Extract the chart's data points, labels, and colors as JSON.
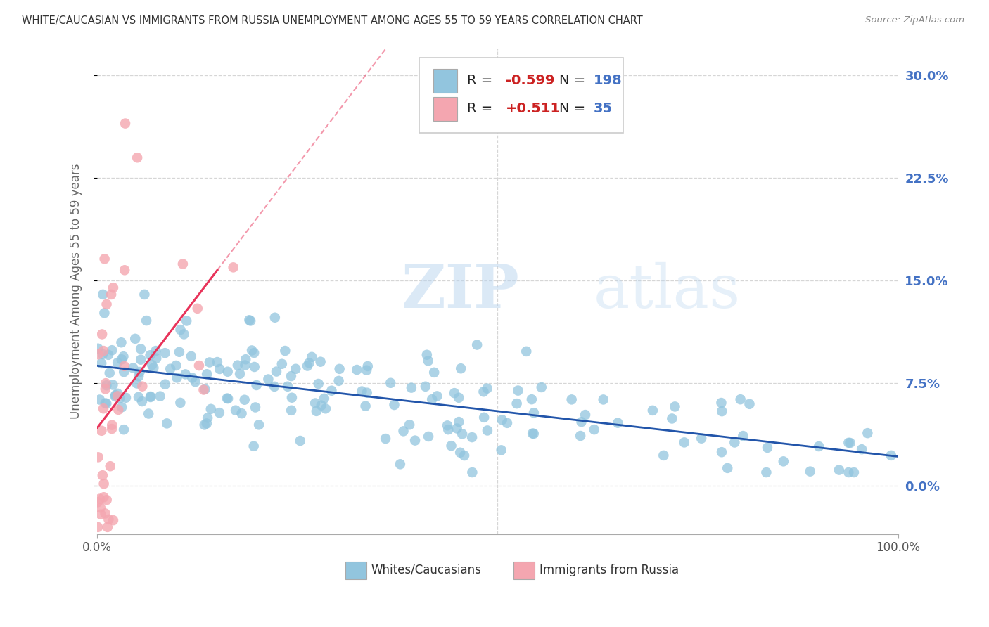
{
  "title": "WHITE/CAUCASIAN VS IMMIGRANTS FROM RUSSIA UNEMPLOYMENT AMONG AGES 55 TO 59 YEARS CORRELATION CHART",
  "source": "Source: ZipAtlas.com",
  "ylabel": "Unemployment Among Ages 55 to 59 years",
  "xlim": [
    0,
    100
  ],
  "ylim": [
    -3.5,
    32
  ],
  "yticks": [
    0,
    7.5,
    15,
    22.5,
    30
  ],
  "ytick_labels": [
    "0.0%",
    "7.5%",
    "15.0%",
    "22.5%",
    "30.0%"
  ],
  "xtick_labels": [
    "0.0%",
    "100.0%"
  ],
  "xtick_positions": [
    0,
    100
  ],
  "blue_R": -0.599,
  "blue_N": 198,
  "pink_R": 0.511,
  "pink_N": 35,
  "blue_color": "#92c5de",
  "pink_color": "#f4a6b0",
  "blue_line_color": "#2255aa",
  "pink_line_color": "#e8335a",
  "watermark_zip": "ZIP",
  "watermark_atlas": "atlas",
  "legend_label_blue": "Whites/Caucasians",
  "legend_label_pink": "Immigrants from Russia",
  "background_color": "#ffffff",
  "grid_color": "#cccccc",
  "title_color": "#333333",
  "axis_label_color": "#666666",
  "tick_color_right": "#4472c4",
  "seed": 42
}
